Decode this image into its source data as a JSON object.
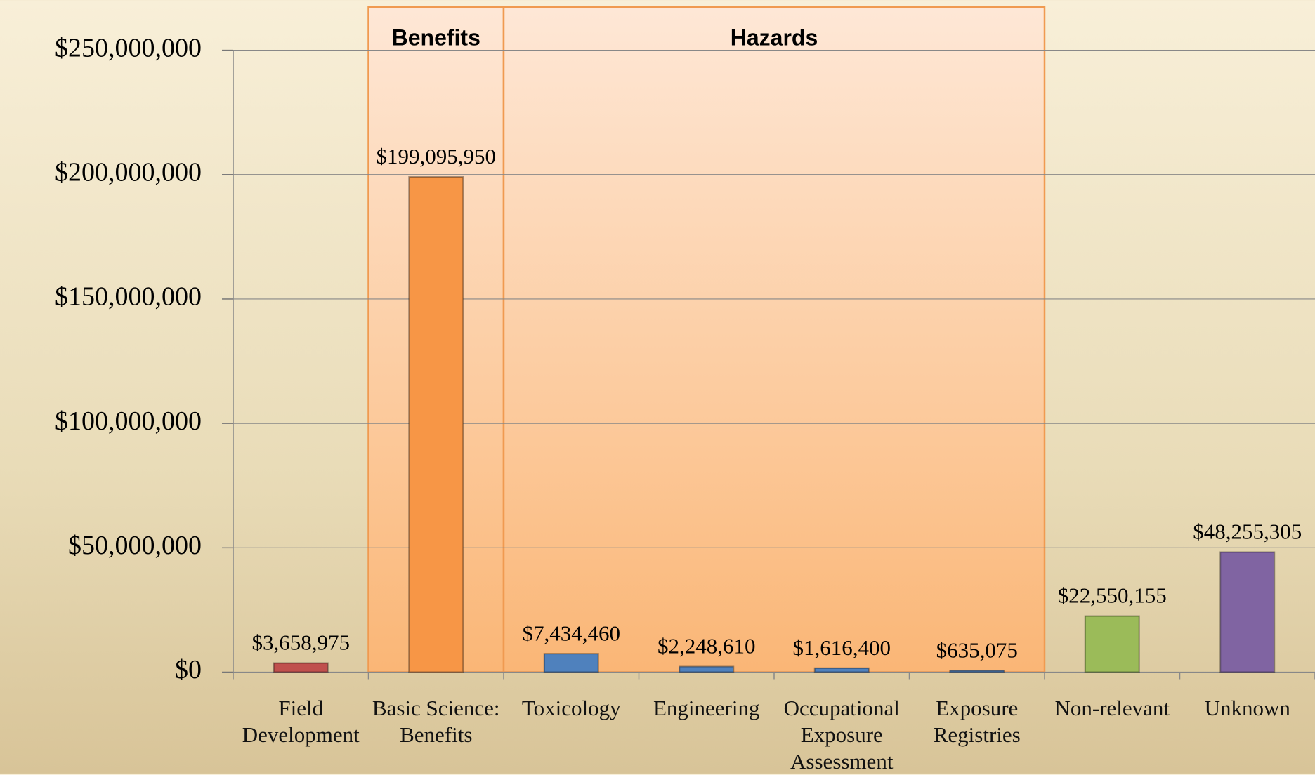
{
  "chart_data": {
    "type": "bar",
    "categories": [
      "Field Development",
      "Basic Science: Benefits",
      "Toxicology",
      "Engineering",
      "Occupational Exposure Assessment",
      "Exposure Registries",
      "Non-relevant",
      "Unknown"
    ],
    "values": [
      3658975,
      199095950,
      7434460,
      2248610,
      1616400,
      635075,
      22550155,
      48255305
    ],
    "value_labels": [
      "$3,658,975",
      "$199,095,950",
      "$7,434,460",
      "$2,248,610",
      "$1,616,400",
      "$635,075",
      "$22,550,155",
      "$48,255,305"
    ],
    "colors": [
      "#c0504d",
      "#f79646",
      "#4f81bd",
      "#4f81bd",
      "#4f81bd",
      "#4f81bd",
      "#9bbb59",
      "#8064a2"
    ],
    "ylim": [
      0,
      250000000
    ],
    "yticks": [
      {
        "value": 0,
        "label": "$0"
      },
      {
        "value": 50000000,
        "label": "$50,000,000"
      },
      {
        "value": 100000000,
        "label": "$100,000,000"
      },
      {
        "value": 150000000,
        "label": "$150,000,000"
      },
      {
        "value": 200000000,
        "label": "$200,000,000"
      },
      {
        "value": 250000000,
        "label": "$250,000,000"
      }
    ],
    "grid": true,
    "regions": [
      {
        "label": "Benefits",
        "start": 1,
        "end": 1
      },
      {
        "label": "Hazards",
        "start": 2,
        "end": 5
      }
    ]
  }
}
